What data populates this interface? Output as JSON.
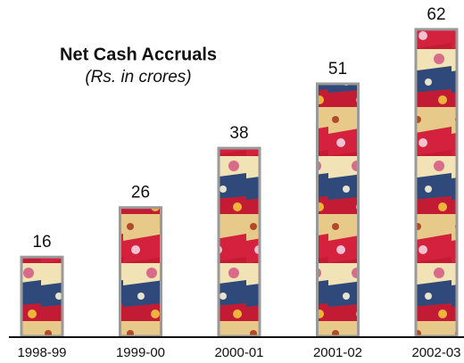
{
  "chart_data": {
    "type": "bar",
    "title": "Net Cash Accruals",
    "subtitle": "(Rs. in crores)",
    "categories": [
      "1998-99",
      "1999-00",
      "2000-01",
      "2001-02",
      "2002-03"
    ],
    "values": [
      16,
      26,
      38,
      51,
      62
    ]
  }
}
